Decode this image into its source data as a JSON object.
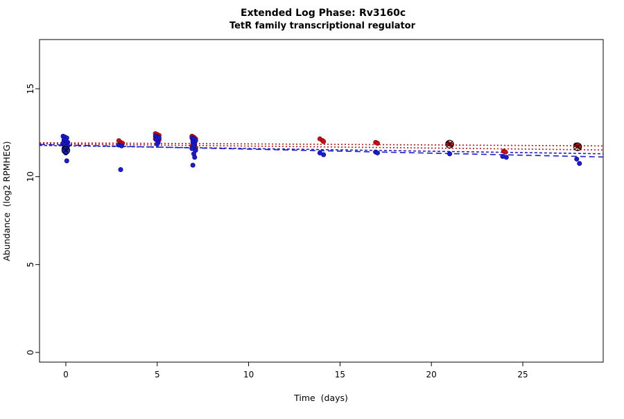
{
  "figure": {
    "title_prefix": "Extended Log Phase:",
    "title_gene": "Rv3160c",
    "subtitle": "TetR family transcriptional regulator",
    "xlabel": "Time  (days)",
    "ylabel": "Abundance  (log2 RPMHEG)"
  },
  "chart_data": {
    "type": "scatter",
    "title": "Extended Log Phase: Rv3160c",
    "subtitle": "TetR family transcriptional regulator",
    "xlabel": "Time (days)",
    "ylabel": "Abundance (log2 RPMHEG)",
    "xlim": [
      -1.44,
      29.4
    ],
    "ylim": [
      -0.55,
      17.8
    ],
    "x_ticks": [
      0,
      5,
      10,
      15,
      20,
      25
    ],
    "y_ticks": [
      0,
      5,
      10,
      15
    ],
    "grid": false,
    "legend": "none",
    "series": [
      {
        "name": "condition-red",
        "color": "#cc0f0f",
        "stroke": "#7a0000",
        "points": [
          [
            -0.1,
            12.05
          ],
          [
            0.0,
            12.0
          ],
          [
            0.1,
            11.95
          ],
          [
            -0.05,
            11.9
          ],
          [
            0.05,
            11.85
          ],
          [
            -0.1,
            11.8
          ],
          [
            0.1,
            11.75
          ],
          [
            0.0,
            11.7
          ],
          [
            -0.05,
            11.65
          ],
          [
            0.05,
            11.6
          ],
          [
            0.0,
            11.5
          ],
          [
            2.9,
            12.05
          ],
          [
            3.0,
            11.95
          ],
          [
            3.1,
            11.9
          ],
          [
            3.0,
            11.85
          ],
          [
            4.9,
            12.45
          ],
          [
            5.0,
            12.4
          ],
          [
            5.1,
            12.35
          ],
          [
            4.95,
            12.3
          ],
          [
            5.05,
            12.25
          ],
          [
            5.0,
            12.2
          ],
          [
            4.9,
            12.15
          ],
          [
            5.1,
            12.1
          ],
          [
            6.9,
            12.3
          ],
          [
            7.0,
            12.25
          ],
          [
            7.1,
            12.15
          ],
          [
            6.95,
            12.05
          ],
          [
            7.05,
            11.95
          ],
          [
            7.0,
            11.85
          ],
          [
            6.9,
            11.75
          ],
          [
            7.1,
            11.65
          ],
          [
            7.0,
            11.6
          ],
          [
            13.9,
            12.15
          ],
          [
            14.05,
            12.05
          ],
          [
            14.1,
            12.0
          ],
          [
            16.95,
            11.95
          ],
          [
            17.05,
            11.9
          ],
          [
            20.9,
            11.9
          ],
          [
            21.0,
            11.85
          ],
          [
            21.1,
            11.8
          ],
          [
            23.95,
            11.45
          ],
          [
            24.05,
            11.4
          ],
          [
            27.9,
            11.8
          ],
          [
            28.0,
            11.75
          ],
          [
            28.1,
            11.7
          ]
        ]
      },
      {
        "name": "condition-blue",
        "color": "#1c1ccd",
        "stroke": "#00008b",
        "points": [
          [
            -0.15,
            12.3
          ],
          [
            -0.05,
            12.25
          ],
          [
            0.05,
            12.2
          ],
          [
            -0.1,
            12.1
          ],
          [
            0.0,
            12.05
          ],
          [
            0.1,
            11.95
          ],
          [
            -0.15,
            11.9
          ],
          [
            0.05,
            11.85
          ],
          [
            -0.05,
            11.8
          ],
          [
            0.1,
            11.75
          ],
          [
            0.0,
            11.7
          ],
          [
            -0.1,
            11.6
          ],
          [
            0.05,
            11.5
          ],
          [
            -0.05,
            11.45
          ],
          [
            0.0,
            11.35
          ],
          [
            0.05,
            10.9
          ],
          [
            2.9,
            11.8
          ],
          [
            3.05,
            11.75
          ],
          [
            3.0,
            10.4
          ],
          [
            4.9,
            12.3
          ],
          [
            5.0,
            12.25
          ],
          [
            5.1,
            12.2
          ],
          [
            4.95,
            12.1
          ],
          [
            5.05,
            11.95
          ],
          [
            5.0,
            11.85
          ],
          [
            6.9,
            12.2
          ],
          [
            7.0,
            12.15
          ],
          [
            7.1,
            12.05
          ],
          [
            6.95,
            11.95
          ],
          [
            7.05,
            11.85
          ],
          [
            7.0,
            11.75
          ],
          [
            6.9,
            11.6
          ],
          [
            7.1,
            11.5
          ],
          [
            7.0,
            11.3
          ],
          [
            7.05,
            11.1
          ],
          [
            6.95,
            10.65
          ],
          [
            13.9,
            11.35
          ],
          [
            14.1,
            11.25
          ],
          [
            16.95,
            11.4
          ],
          [
            17.05,
            11.35
          ],
          [
            21.0,
            11.3
          ],
          [
            23.9,
            11.15
          ],
          [
            24.1,
            11.1
          ],
          [
            27.95,
            11.0
          ],
          [
            28.1,
            10.75
          ]
        ]
      }
    ],
    "fit_lines": [
      {
        "name": "red-fit-1",
        "color": "#cc0f0f",
        "style": "dotted",
        "dash": "2,3",
        "x": [
          -1.44,
          29.4
        ],
        "y": [
          11.93,
          11.75
        ]
      },
      {
        "name": "red-fit-2",
        "color": "#cc0f0f",
        "style": "dotted",
        "dash": "2,3",
        "x": [
          -1.44,
          29.4
        ],
        "y": [
          11.87,
          11.52
        ]
      },
      {
        "name": "blue-fit-1",
        "color": "#1c1ccd",
        "style": "longdash",
        "dash": "8,5",
        "x": [
          -1.44,
          29.4
        ],
        "y": [
          11.83,
          11.12
        ]
      },
      {
        "name": "blue-fit-2",
        "color": "#1c1ccd",
        "style": "dashed",
        "dash": "4,3",
        "x": [
          -1.44,
          29.4
        ],
        "y": [
          11.78,
          11.3
        ]
      }
    ],
    "flagged_points": [
      [
        0,
        11.5
      ],
      [
        21,
        11.85
      ],
      [
        28,
        11.7
      ]
    ]
  }
}
